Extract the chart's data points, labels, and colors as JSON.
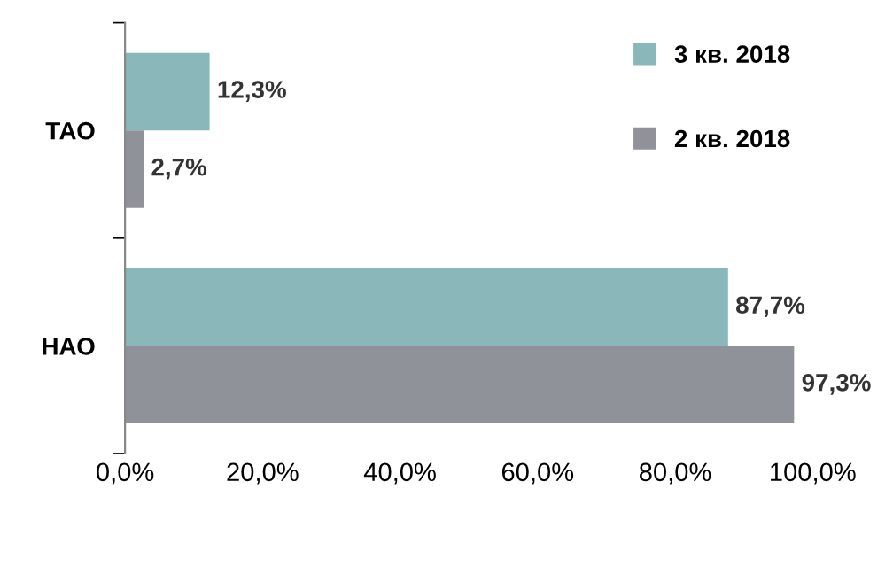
{
  "chart_data": {
    "type": "bar",
    "orientation": "horizontal",
    "categories": [
      "ТАО",
      "НАО"
    ],
    "series": [
      {
        "name": "3 кв. 2018",
        "color": "#8ab8ba",
        "values": [
          12.3,
          87.7
        ],
        "value_labels": [
          "12,3%",
          "87,7%"
        ]
      },
      {
        "name": "2 кв. 2018",
        "color": "#8f9399",
        "values": [
          2.7,
          97.3
        ],
        "value_labels": [
          "2,7%",
          "97,3%"
        ]
      }
    ],
    "xlim": [
      0,
      100
    ],
    "xticks": [
      {
        "value": 0,
        "label": "0,0%"
      },
      {
        "value": 20,
        "label": "20,0%"
      },
      {
        "value": 40,
        "label": "40,0%"
      },
      {
        "value": 60,
        "label": "60,0%"
      },
      {
        "value": 80,
        "label": "80,0%"
      },
      {
        "value": 100,
        "label": "100,0%"
      }
    ],
    "grid": false,
    "legend": "top right"
  }
}
